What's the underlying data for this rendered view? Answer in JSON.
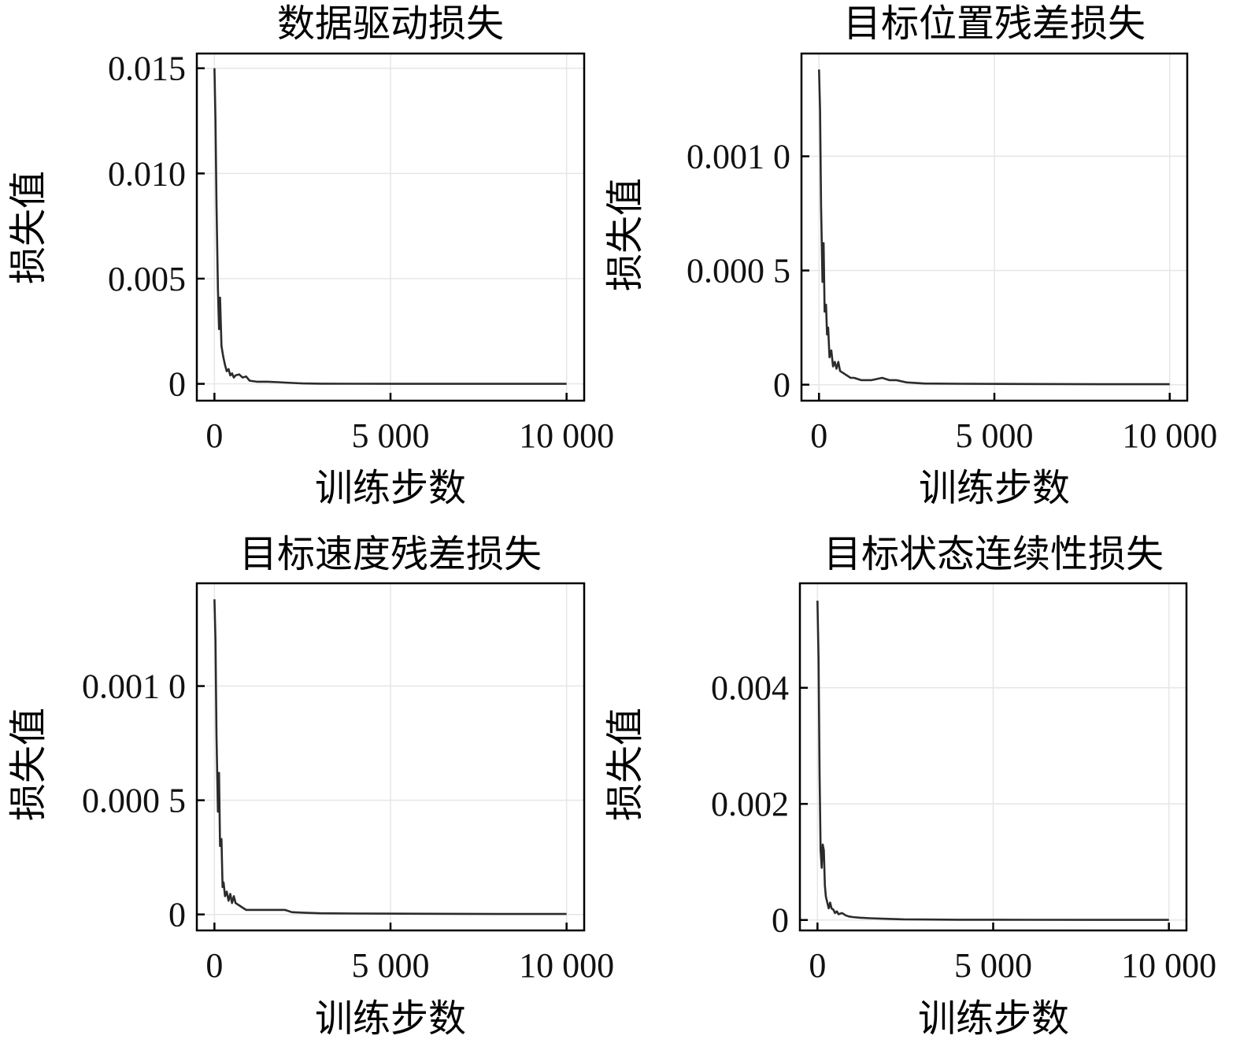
{
  "chart_data": [
    {
      "type": "line",
      "title": "数据驱动损失",
      "xlabel": "训练步数",
      "ylabel": "损失值",
      "xlim": [
        -500,
        10500
      ],
      "ylim": [
        -0.0008,
        0.0157
      ],
      "xticks": [
        0,
        5000,
        10000
      ],
      "xtick_labels": [
        "0",
        "5 000",
        "10 000"
      ],
      "yticks": [
        0,
        0.005,
        0.01,
        0.015
      ],
      "ytick_labels": [
        "0",
        "0.005",
        "0.010",
        "0.015"
      ],
      "grid": true,
      "series": [
        {
          "x": [
            0,
            30,
            60,
            100,
            130,
            160,
            200,
            250,
            300,
            350,
            400,
            450,
            500,
            550,
            600,
            700,
            800,
            900,
            1000,
            1200,
            1500,
            1800,
            2000,
            2500,
            3000,
            4000,
            6000,
            8000,
            10000
          ],
          "y": [
            0.015,
            0.0125,
            0.0085,
            0.0045,
            0.0026,
            0.0041,
            0.0018,
            0.0013,
            0.0009,
            0.0006,
            0.0007,
            0.0004,
            0.0005,
            0.0003,
            0.0004,
            0.00045,
            0.0003,
            0.00035,
            0.00015,
            0.0001,
            0.0001,
            8e-05,
            6e-05,
            2e-05,
            1e-05,
            5e-06,
            2e-06,
            1e-06,
            1e-06
          ]
        }
      ]
    },
    {
      "type": "line",
      "title": "目标位置残差损失",
      "xlabel": "训练步数",
      "ylabel": "损失值",
      "xlim": [
        -500,
        10500
      ],
      "ylim": [
        -7e-05,
        0.00145
      ],
      "xticks": [
        0,
        5000,
        10000
      ],
      "xtick_labels": [
        "0",
        "5 000",
        "10 000"
      ],
      "yticks": [
        0,
        0.0005,
        0.001
      ],
      "ytick_labels": [
        "0",
        "0.000 5",
        "0.001 0"
      ],
      "grid": true,
      "series": [
        {
          "x": [
            0,
            30,
            60,
            100,
            130,
            160,
            200,
            230,
            260,
            300,
            350,
            400,
            450,
            500,
            550,
            600,
            700,
            800,
            900,
            1000,
            1200,
            1500,
            1800,
            2000,
            2200,
            2500,
            3000,
            4000,
            6000,
            8000,
            10000
          ],
          "y": [
            0.00138,
            0.0012,
            0.00078,
            0.00045,
            0.00062,
            0.00032,
            0.00035,
            0.00022,
            0.00025,
            0.00012,
            0.00015,
            8e-05,
            0.0001,
            7e-05,
            0.0001,
            6e-05,
            5e-05,
            4e-05,
            3e-05,
            3e-05,
            2e-05,
            2e-05,
            3e-05,
            2e-05,
            2e-05,
            1e-05,
            5e-06,
            4e-06,
            3e-06,
            2e-06,
            2e-06
          ]
        }
      ]
    },
    {
      "type": "line",
      "title": "目标速度残差损失",
      "xlabel": "训练步数",
      "ylabel": "损失值",
      "xlim": [
        -500,
        10500
      ],
      "ylim": [
        -7e-05,
        0.00145
      ],
      "xticks": [
        0,
        5000,
        10000
      ],
      "xtick_labels": [
        "0",
        "5 000",
        "10 000"
      ],
      "yticks": [
        0,
        0.0005,
        0.001
      ],
      "ytick_labels": [
        "0",
        "0.000 5",
        "0.001 0"
      ],
      "grid": true,
      "series": [
        {
          "x": [
            0,
            30,
            60,
            100,
            130,
            160,
            200,
            230,
            260,
            300,
            350,
            400,
            450,
            500,
            550,
            600,
            700,
            800,
            900,
            1000,
            1200,
            1500,
            1800,
            2000,
            2200,
            2500,
            3000,
            4000,
            6000,
            8000,
            10000
          ],
          "y": [
            0.00138,
            0.0012,
            0.00078,
            0.00045,
            0.00062,
            0.0003,
            0.00033,
            0.00012,
            0.00014,
            8e-05,
            0.0001,
            6e-05,
            9e-05,
            5e-05,
            8e-05,
            5e-05,
            4e-05,
            3e-05,
            2e-05,
            2e-05,
            2e-05,
            2e-05,
            2e-05,
            2e-05,
            1e-05,
            8e-06,
            5e-06,
            4e-06,
            3e-06,
            2e-06,
            2e-06
          ]
        }
      ]
    },
    {
      "type": "line",
      "title": "目标状态连续性损失",
      "xlabel": "训练步数",
      "ylabel": "损失值",
      "xlim": [
        -500,
        10500
      ],
      "ylim": [
        -0.00018,
        0.0058
      ],
      "xticks": [
        0,
        5000,
        10000
      ],
      "xtick_labels": [
        "0",
        "5 000",
        "10 000"
      ],
      "yticks": [
        0,
        0.002,
        0.004
      ],
      "ytick_labels": [
        "0",
        "0.002",
        "0.004"
      ],
      "grid": true,
      "series": [
        {
          "x": [
            0,
            30,
            60,
            90,
            120,
            150,
            180,
            210,
            240,
            280,
            320,
            360,
            400,
            450,
            500,
            550,
            600,
            700,
            800,
            900,
            1000,
            1200,
            1500,
            2000,
            2500,
            3000,
            4000,
            6000,
            8000,
            10000
          ],
          "y": [
            0.0055,
            0.0045,
            0.0025,
            0.0012,
            0.0009,
            0.0013,
            0.0012,
            0.0006,
            0.0004,
            0.0003,
            0.0002,
            0.0003,
            0.0002,
            0.00018,
            0.00012,
            0.00015,
            0.0001,
            0.00012,
            8e-05,
            6e-05,
            5e-05,
            4e-05,
            3e-05,
            2e-05,
            1e-05,
            8e-06,
            5e-06,
            3e-06,
            2e-06,
            2e-06
          ]
        }
      ]
    }
  ]
}
